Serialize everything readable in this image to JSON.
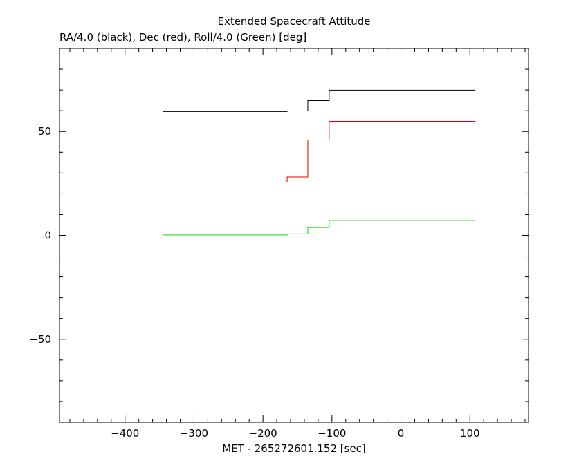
{
  "chart_data": {
    "type": "line",
    "title": "Extended Spacecraft Attitude",
    "subtitle": "RA/4.0 (black), Dec (red), Roll/4.0 (Green) [deg]",
    "xlabel": "MET - 265272601.152 [sec]",
    "ylabel": "",
    "xlim": [
      -495,
      185
    ],
    "ylim": [
      -90,
      90
    ],
    "x_major_ticks": [
      -400,
      -300,
      -200,
      -100,
      0,
      100
    ],
    "x_tick_labels": [
      "−400",
      "−300",
      "−200",
      "−100",
      "0",
      "100"
    ],
    "y_major_ticks": [
      -50,
      0,
      50
    ],
    "y_tick_labels": [
      "−50",
      "0",
      "50"
    ],
    "x_minor_step": 20,
    "y_minor_step": 10,
    "grid": false,
    "step": true,
    "series": [
      {
        "color": "#000000",
        "x": [
          -345,
          -165,
          -135,
          -104,
          108
        ],
        "y": [
          59.6,
          59.9,
          64.9,
          69.9,
          69.9
        ]
      },
      {
        "color": "#dd0000",
        "x": [
          -345,
          -165,
          -135,
          -104,
          108
        ],
        "y": [
          25.6,
          28.1,
          45.9,
          54.9,
          54.9
        ]
      },
      {
        "color": "#00dd00",
        "x": [
          -345,
          -165,
          -135,
          -104,
          108
        ],
        "y": [
          0.2,
          0.7,
          3.8,
          7.2,
          7.2
        ]
      }
    ]
  }
}
